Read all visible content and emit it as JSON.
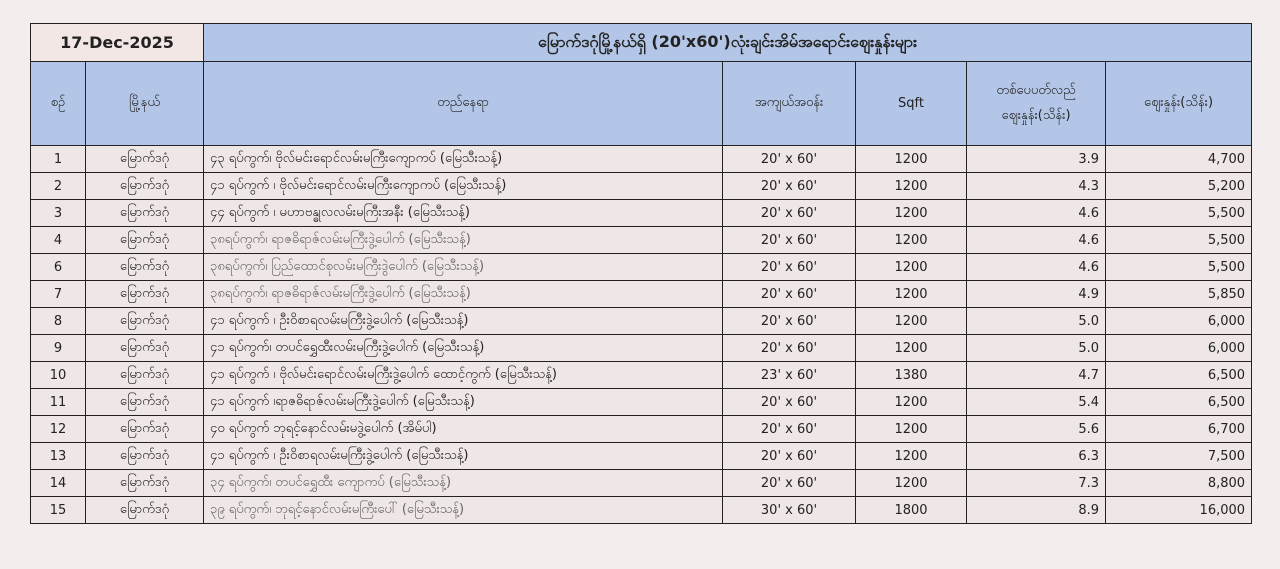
{
  "date": "17-Dec-2025",
  "title": "မြောက်ဒဂုံမြို့နယ်ရှိ (20'x60')လုံးချင်းအိမ်အရောင်းဈေးနှုန်းများ",
  "headers": {
    "no": "စဉ်",
    "township": "မြို့နယ်",
    "location": "တည်နေရာ",
    "size": "အကျယ်အဝန်း",
    "sqft": "Sqft",
    "per_sqft_1": "တစ်ပေပတ်လည်",
    "per_sqft_2": "ဈေးနှုန်း(သိန်း)",
    "price": "ဈေးနှုန်း(သိန်း)"
  },
  "rows": [
    {
      "no": "1",
      "township": "မြောက်ဒဂုံ",
      "location": "၄၃ ရပ်ကွက်၊ ဗိုလ်မင်းရောင်လမ်းမကြီးကျောကပ် (မြေသီးသန့်)",
      "size": "20' x 60'",
      "sqft": "1200",
      "per_sqft": "3.9",
      "price": "4,700"
    },
    {
      "no": "2",
      "township": "မြောက်ဒဂုံ",
      "location": "၄၁ ရပ်ကွက် ၊  ဗိုလ်မင်းရောင်လမ်းမကြီးကျောကပ် (မြေသီးသန့်)",
      "size": "20' x 60'",
      "sqft": "1200",
      "per_sqft": "4.3",
      "price": "5,200"
    },
    {
      "no": "3",
      "township": "မြောက်ဒဂုံ",
      "location": "၄၄ ရပ်ကွက် ၊  မဟာဗန္ဓုလလမ်းမကြီးအနီး (မြေသီးသန့်)",
      "size": "20' x 60'",
      "sqft": "1200",
      "per_sqft": "4.6",
      "price": "5,500"
    },
    {
      "no": "4",
      "township": "မြောက်ဒဂုံ",
      "location": "၃၈ရပ်ကွက်၊ ရာဇဓိရာဇ်လမ်းမကြီးဒွဲ့ပေါက် (မြေသီးသန့်)",
      "size": "20' x 60'",
      "sqft": "1200",
      "per_sqft": "4.6",
      "price": "5,500"
    },
    {
      "no": "6",
      "township": "မြောက်ဒဂုံ",
      "location": "၃၈ရပ်ကွက်၊ ပြည်ထောင်စုလမ်းမကြီးဒွဲပေါက် (မြေသီးသန့်)",
      "size": "20' x 60'",
      "sqft": "1200",
      "per_sqft": "4.6",
      "price": "5,500"
    },
    {
      "no": "7",
      "township": "မြောက်ဒဂုံ",
      "location": "၃၈ရပ်ကွက်၊ ရာဇဓိရာဇ်လမ်းမကြီးဒွဲ့ပေါက် (မြေသီးသန့်)",
      "size": "20' x 60'",
      "sqft": "1200",
      "per_sqft": "4.9",
      "price": "5,850"
    },
    {
      "no": "8",
      "township": "မြောက်ဒဂုံ",
      "location": "၄၁ ရပ်ကွက် ၊ ဦးဝိစာရလမ်းမကြီးဒွဲ့ပေါက် (မြေသီးသန့်)",
      "size": "20' x 60'",
      "sqft": "1200",
      "per_sqft": "5.0",
      "price": "6,000"
    },
    {
      "no": "9",
      "township": "မြောက်ဒဂုံ",
      "location": "၄၁ ရပ်ကွက်၊ တပင်ရွှေထီးလမ်းမကြီးဒွဲ့ပေါက်  (မြေသီးသန့်)",
      "size": "20' x 60'",
      "sqft": "1200",
      "per_sqft": "5.0",
      "price": "6,000"
    },
    {
      "no": "10",
      "township": "မြောက်ဒဂုံ",
      "location": "၄၁ ရပ်ကွက် ၊ ဗိုလ်မင်းရောင်လမ်းမကြီးဒွဲ့ပေါက် ထောင့်ကွက် (မြေသီးသန့်)",
      "size": "23' x 60'",
      "sqft": "1380",
      "per_sqft": "4.7",
      "price": "6,500"
    },
    {
      "no": "11",
      "township": "မြောက်ဒဂုံ",
      "location": "၄၁ ရပ်ကွက် ၊ရာဇဓိရာဇ်လမ်းမကြီးဒွဲ့ပေါက် (မြေသီးသန့်)",
      "size": "20' x 60'",
      "sqft": "1200",
      "per_sqft": "5.4",
      "price": "6,500"
    },
    {
      "no": "12",
      "township": "မြောက်ဒဂုံ",
      "location": "၄၀ ရပ်ကွက် ဘုရင့်နောင်လမ်းမဒွဲ့ပေါက် (အိမ်ပါ)",
      "size": "20' x 60'",
      "sqft": "1200",
      "per_sqft": "5.6",
      "price": "6,700"
    },
    {
      "no": "13",
      "township": "မြောက်ဒဂုံ",
      "location": "၄၁ ရပ်ကွက် ၊ ဦးဝိစာရလမ်းမကြီးဒွဲ့ပေါက် (မြေသီးသန့်)",
      "size": "20' x 60'",
      "sqft": "1200",
      "per_sqft": "6.3",
      "price": "7,500"
    },
    {
      "no": "14",
      "township": "မြောက်ဒဂုံ",
      "location": "၃၄ ရပ်ကွက်၊ တပင်ရွှေထီး ကျောကပ် (မြေသီးသန့်)",
      "size": "20' x 60'",
      "sqft": "1200",
      "per_sqft": "7.3",
      "price": "8,800"
    },
    {
      "no": "15",
      "township": "မြောက်ဒဂုံ",
      "location": "၃၉ ရပ်ကွက်၊ ဘုရင့်နောင်လမ်းမကြီးပေါ် (မြေသီးသန့်)",
      "size": "30' x 60'",
      "sqft": "1800",
      "per_sqft": "8.9",
      "price": "16,000"
    }
  ]
}
